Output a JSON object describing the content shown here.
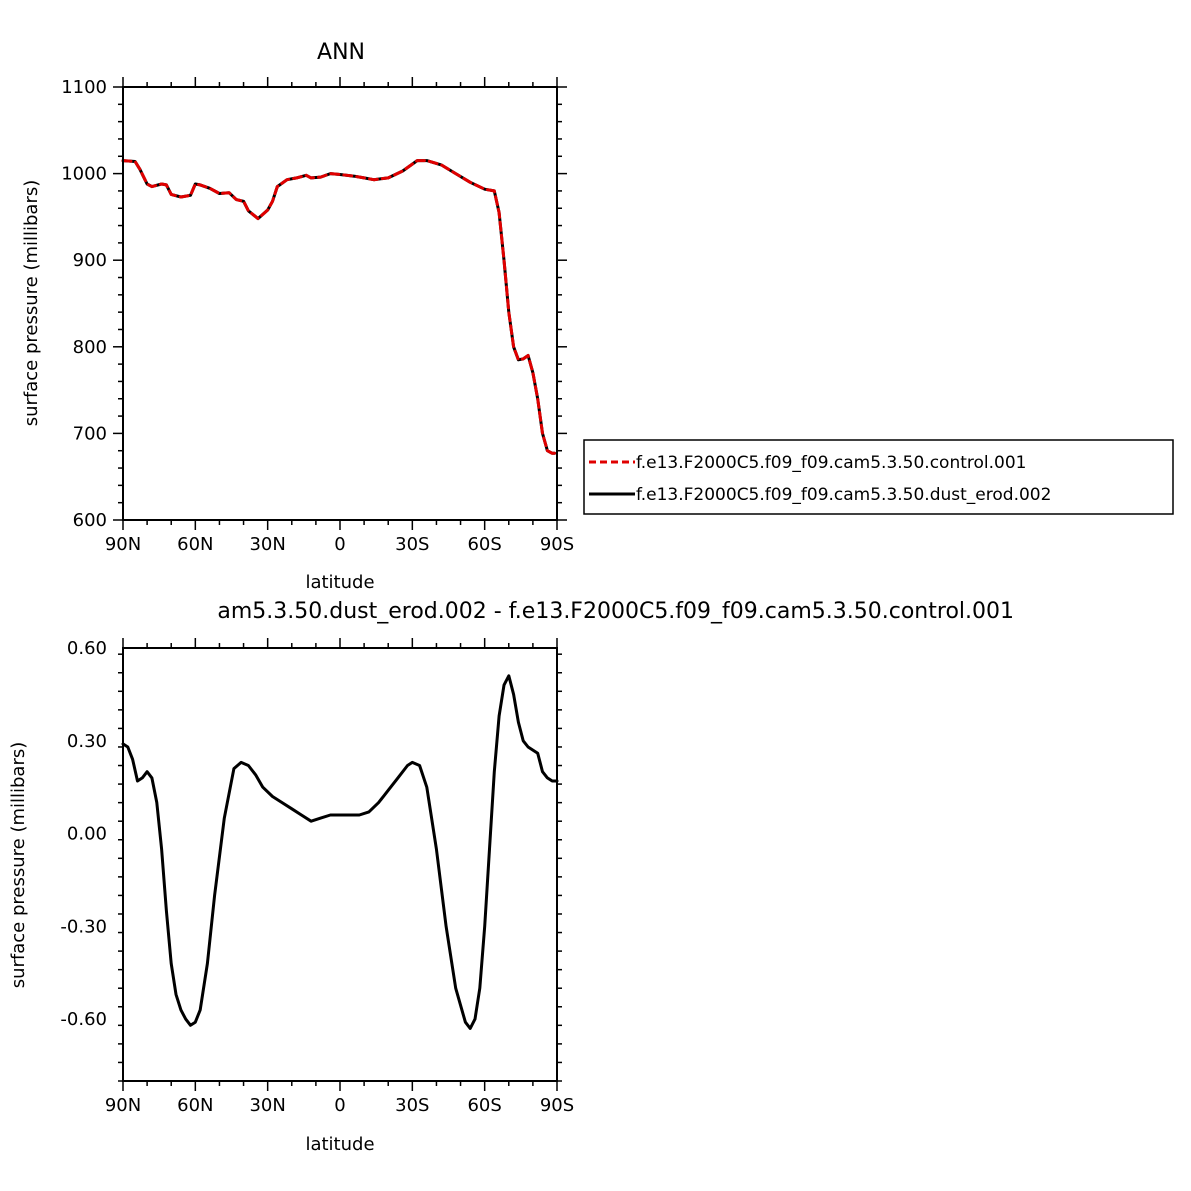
{
  "chart_data": [
    {
      "type": "line",
      "title": "ANN",
      "xlabel": "latitude",
      "ylabel": "surface pressure (millibars)",
      "x_ticks": [
        90,
        60,
        30,
        0,
        -30,
        -60,
        -90
      ],
      "x_tick_labels": [
        "90N",
        "60N",
        "30N",
        "0",
        "30S",
        "60S",
        "90S"
      ],
      "y_ticks": [
        600,
        700,
        800,
        900,
        1000,
        1100
      ],
      "y_tick_labels": [
        "600",
        "700",
        "800",
        "900",
        "1000",
        "1100"
      ],
      "xlim": [
        90,
        -90
      ],
      "ylim": [
        600,
        1100
      ],
      "grid": false,
      "legend_position": "right, outside plot",
      "series": [
        {
          "name": "f.e13.F2000C5.f09_f09.cam5.3.50.control.001",
          "color": "#e00000",
          "style": "dashed",
          "x": [
            90,
            85,
            83,
            80,
            78,
            74,
            72,
            70,
            66,
            62,
            60,
            58,
            54,
            50,
            46,
            43,
            40,
            38,
            34,
            30,
            28,
            26,
            22,
            18,
            14,
            12,
            8,
            4,
            0,
            -6,
            -10,
            -14,
            -20,
            -26,
            -32,
            -36,
            -42,
            -48,
            -54,
            -60,
            -64,
            -66,
            -68,
            -70,
            -72,
            -74,
            -76,
            -78,
            -80,
            -82,
            -84,
            -86,
            -88,
            -89
          ],
          "y": [
            1015,
            1014,
            1005,
            988,
            985,
            988,
            987,
            976,
            973,
            975,
            988,
            987,
            983,
            977,
            978,
            970,
            968,
            957,
            948,
            958,
            968,
            985,
            993,
            995,
            998,
            995,
            996,
            1000,
            999,
            997,
            995,
            993,
            995,
            1003,
            1015,
            1015,
            1010,
            1000,
            990,
            982,
            980,
            955,
            900,
            840,
            800,
            785,
            786,
            790,
            770,
            740,
            700,
            680,
            677,
            677
          ]
        },
        {
          "name": "f.e13.F2000C5.f09_f09.cam5.3.50.dust_erod.002",
          "color": "#000000",
          "style": "solid",
          "x": [
            90,
            85,
            83,
            80,
            78,
            74,
            72,
            70,
            66,
            62,
            60,
            58,
            54,
            50,
            46,
            43,
            40,
            38,
            34,
            30,
            28,
            26,
            22,
            18,
            14,
            12,
            8,
            4,
            0,
            -6,
            -10,
            -14,
            -20,
            -26,
            -32,
            -36,
            -42,
            -48,
            -54,
            -60,
            -64,
            -66,
            -68,
            -70,
            -72,
            -74,
            -76,
            -78,
            -80,
            -82,
            -84,
            -86,
            -88,
            -89
          ],
          "y": [
            1015,
            1014,
            1005,
            988,
            985,
            988,
            987,
            976,
            973,
            975,
            988,
            987,
            983,
            977,
            978,
            970,
            968,
            957,
            948,
            958,
            968,
            985,
            993,
            995,
            998,
            995,
            996,
            1000,
            999,
            997,
            995,
            993,
            995,
            1003,
            1015,
            1015,
            1010,
            1000,
            990,
            982,
            980,
            955,
            900,
            840,
            800,
            785,
            786,
            790,
            770,
            740,
            700,
            680,
            677,
            677
          ]
        }
      ]
    },
    {
      "type": "line",
      "title": "am5.3.50.dust_erod.002 - f.e13.F2000C5.f09_f09.cam5.3.50.control.001",
      "xlabel": "latitude",
      "ylabel": "surface pressure (millibars)",
      "x_ticks": [
        90,
        60,
        30,
        0,
        -30,
        -60,
        -90
      ],
      "x_tick_labels": [
        "90N",
        "60N",
        "30N",
        "0",
        "30S",
        "60S",
        "90S"
      ],
      "y_ticks": [
        0.6,
        0.3,
        0.0,
        -0.3,
        -0.6
      ],
      "y_tick_labels": [
        "0.60",
        "0.30",
        "0.00",
        "-0.30",
        "-0.60"
      ],
      "xlim": [
        90,
        -90
      ],
      "ylim": [
        -0.8,
        0.6
      ],
      "grid": false,
      "series": [
        {
          "name": "",
          "color": "#000000",
          "style": "solid",
          "x": [
            90,
            88,
            86,
            84,
            82,
            80,
            78,
            76,
            74,
            72,
            70,
            68,
            66,
            64,
            62,
            60,
            58,
            55,
            52,
            48,
            44,
            41,
            38,
            35,
            32,
            28,
            24,
            20,
            16,
            12,
            8,
            4,
            0,
            -4,
            -8,
            -12,
            -16,
            -20,
            -24,
            -28,
            -30,
            -33,
            -36,
            -40,
            -44,
            -48,
            -52,
            -54,
            -56,
            -58,
            -60,
            -62,
            -64,
            -66,
            -68,
            -70,
            -72,
            -74,
            -76,
            -78,
            -80,
            -82,
            -84,
            -86,
            -88,
            -90
          ],
          "y": [
            0.29,
            0.28,
            0.24,
            0.17,
            0.18,
            0.2,
            0.18,
            0.1,
            -0.05,
            -0.25,
            -0.42,
            -0.52,
            -0.57,
            -0.6,
            -0.62,
            -0.61,
            -0.57,
            -0.42,
            -0.2,
            0.05,
            0.21,
            0.23,
            0.22,
            0.19,
            0.15,
            0.12,
            0.1,
            0.08,
            0.06,
            0.04,
            0.05,
            0.06,
            0.06,
            0.06,
            0.06,
            0.07,
            0.1,
            0.14,
            0.18,
            0.22,
            0.23,
            0.22,
            0.15,
            -0.05,
            -0.3,
            -0.5,
            -0.61,
            -0.63,
            -0.6,
            -0.5,
            -0.3,
            -0.05,
            0.2,
            0.38,
            0.48,
            0.51,
            0.45,
            0.36,
            0.3,
            0.28,
            0.27,
            0.26,
            0.2,
            0.18,
            0.17,
            0.17
          ]
        }
      ]
    }
  ]
}
